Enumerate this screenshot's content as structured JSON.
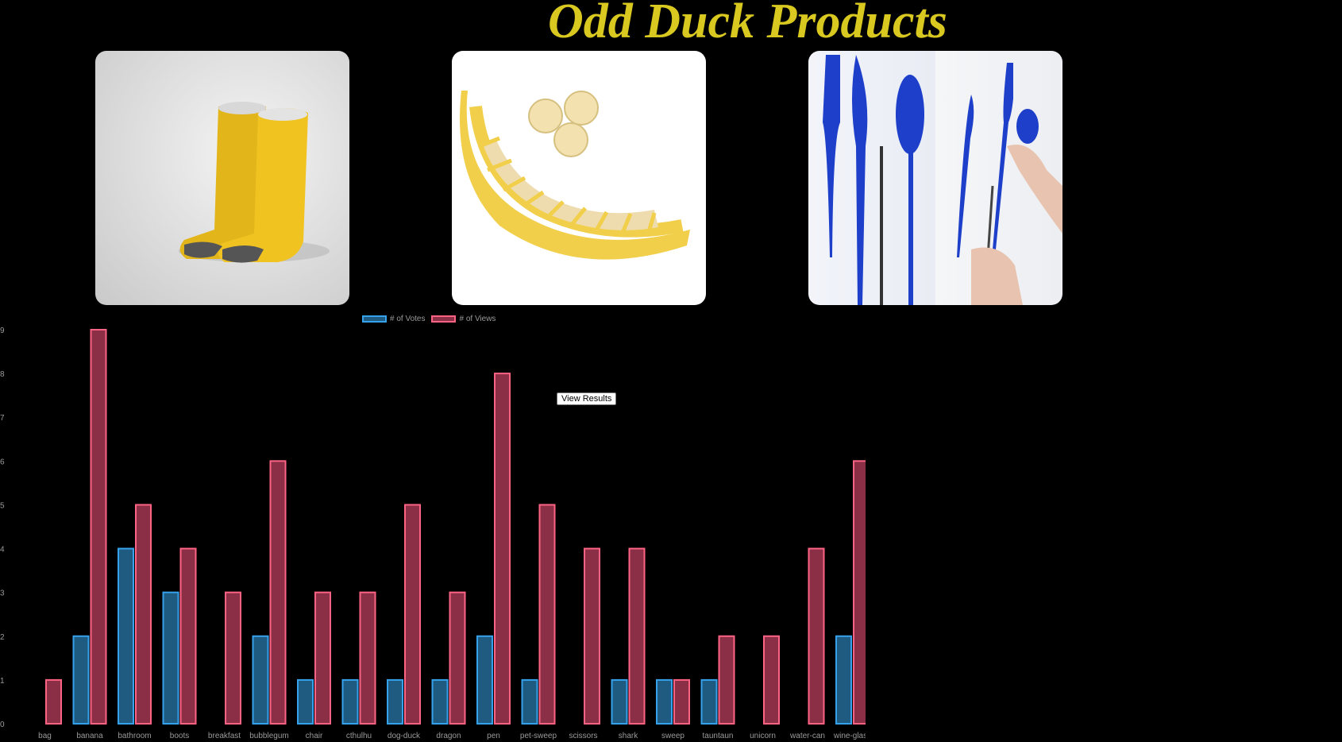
{
  "header": {
    "title": "Odd Duck Products"
  },
  "products": [
    {
      "name": "boots"
    },
    {
      "name": "banana"
    },
    {
      "name": "pen"
    }
  ],
  "controls": {
    "view_results_label": "View Results"
  },
  "colors": {
    "title": "#d9c81f",
    "votes_fill": "#1f5a80",
    "votes_border": "#36a2eb",
    "views_fill": "#8a2f45",
    "views_border": "#ff6384"
  },
  "chart_data": {
    "type": "bar",
    "categories": [
      "bag",
      "banana",
      "bathroom",
      "boots",
      "breakfast",
      "bubblegum",
      "chair",
      "cthulhu",
      "dog-duck",
      "dragon",
      "pen",
      "pet-sweep",
      "scissors",
      "shark",
      "sweep",
      "tauntaun",
      "unicorn",
      "water-can",
      "wine-glass"
    ],
    "series": [
      {
        "name": "# of Votes",
        "values": [
          0,
          2,
          4,
          3,
          0,
          2,
          1,
          1,
          1,
          1,
          2,
          1,
          0,
          1,
          1,
          1,
          0,
          0,
          2
        ]
      },
      {
        "name": "# of Views",
        "values": [
          1,
          9,
          5,
          4,
          3,
          6,
          3,
          3,
          5,
          3,
          8,
          5,
          4,
          4,
          1,
          2,
          2,
          4,
          6
        ]
      }
    ],
    "yticks": [
      "0",
      "1",
      "2",
      "3",
      "4",
      "5",
      "6",
      "7",
      "8",
      "9"
    ],
    "ylim": [
      0,
      9
    ],
    "legend_position": "top",
    "grid": false
  }
}
